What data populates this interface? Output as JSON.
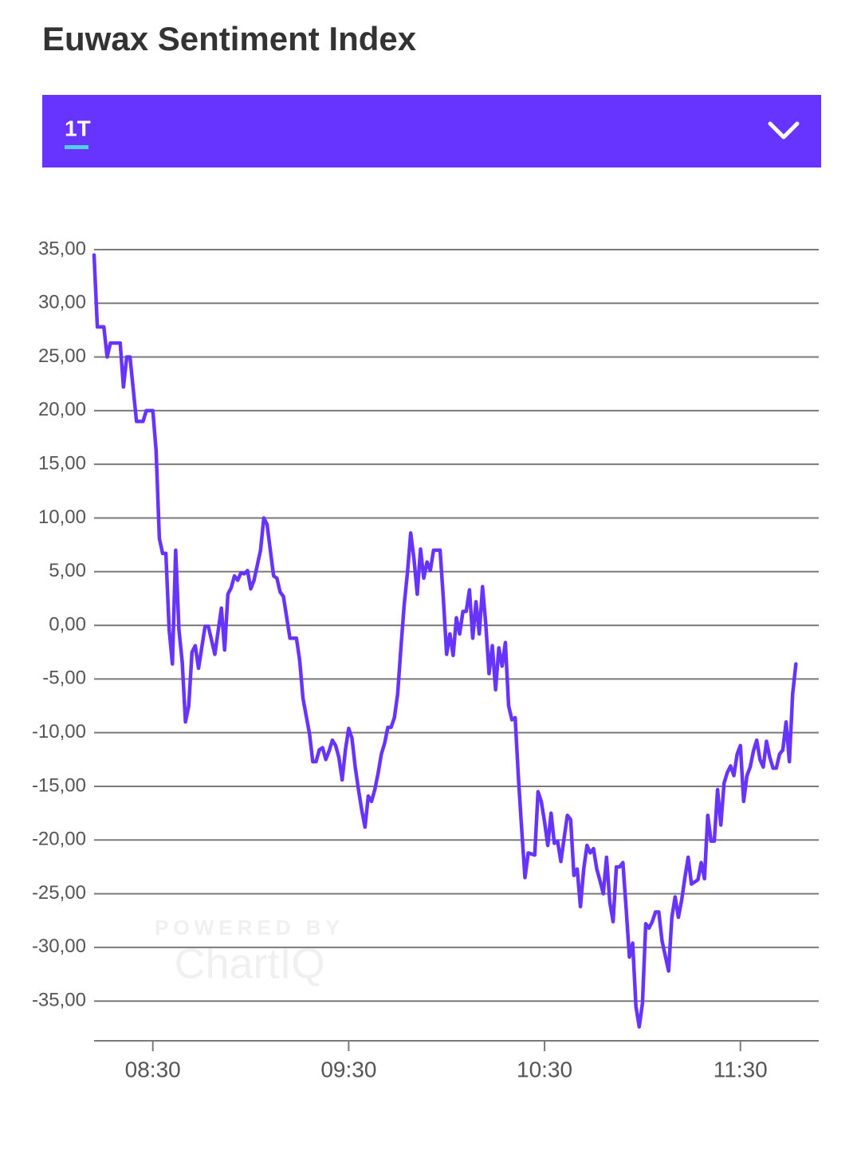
{
  "period": "1T",
  "chart_data": {
    "type": "line",
    "title": "Euwax Sentiment Index",
    "color": "#6633ff",
    "grid": true,
    "watermark": [
      "POWERED BY",
      "ChartIQ"
    ],
    "xlim": [
      "08:12",
      "11:54"
    ],
    "xticks": [
      "08:30",
      "09:30",
      "10:30",
      "11:30"
    ],
    "ylim": [
      -38.7,
      36
    ],
    "yticks": [
      {
        "value": 35,
        "label": "35,00"
      },
      {
        "value": 30,
        "label": "30,00"
      },
      {
        "value": 25,
        "label": "25,00"
      },
      {
        "value": 20,
        "label": "20,00"
      },
      {
        "value": 15,
        "label": "15,00"
      },
      {
        "value": 10,
        "label": "10,00"
      },
      {
        "value": 5,
        "label": "5,00"
      },
      {
        "value": 0,
        "label": "0,00"
      },
      {
        "value": -5,
        "label": "-5,00"
      },
      {
        "value": -10,
        "label": "-10,00"
      },
      {
        "value": -15,
        "label": "-15,00"
      },
      {
        "value": -20,
        "label": "-20,00"
      },
      {
        "value": -25,
        "label": "-25,00"
      },
      {
        "value": -30,
        "label": "-30,00"
      },
      {
        "value": -35,
        "label": "-35,00"
      }
    ],
    "x": [
      "08:12",
      "08:13",
      "08:15",
      "08:16",
      "08:17",
      "08:20",
      "08:21",
      "08:22",
      "08:23",
      "08:25",
      "08:27",
      "08:28",
      "08:30",
      "08:31",
      "08:32",
      "08:33",
      "08:34",
      "08:35",
      "08:36",
      "08:37",
      "08:38",
      "08:39",
      "08:40",
      "08:41",
      "08:42",
      "08:43",
      "08:44",
      "08:46",
      "08:47",
      "08:49",
      "08:51",
      "08:52",
      "08:53",
      "08:54",
      "08:55",
      "08:56",
      "08:57",
      "08:58",
      "08:59",
      "09:00",
      "09:01",
      "09:03",
      "09:04",
      "09:05",
      "09:07",
      "09:08",
      "09:09",
      "09:10",
      "09:12",
      "09:14",
      "09:15",
      "09:16",
      "09:18",
      "09:19",
      "09:20",
      "09:21",
      "09:22",
      "09:23",
      "09:24",
      "09:25",
      "09:26",
      "09:27",
      "09:28",
      "09:29",
      "09:30",
      "09:31",
      "09:32",
      "09:33",
      "09:34",
      "09:35",
      "09:36",
      "09:37",
      "09:38",
      "09:39",
      "09:40",
      "09:41",
      "09:42",
      "09:43",
      "09:44",
      "09:45",
      "09:46",
      "09:47",
      "09:48",
      "09:49",
      "09:50",
      "09:51",
      "09:52",
      "09:53",
      "09:54",
      "09:55",
      "09:56",
      "09:58",
      "09:59",
      "10:00",
      "10:01",
      "10:02",
      "10:03",
      "10:04",
      "10:05",
      "10:06",
      "10:07",
      "10:08",
      "10:09",
      "10:10",
      "10:11",
      "10:12",
      "10:13",
      "10:14",
      "10:15",
      "10:16",
      "10:17",
      "10:18",
      "10:19",
      "10:20",
      "10:21",
      "10:22",
      "10:23",
      "10:24",
      "10:25",
      "10:27",
      "10:28",
      "10:29",
      "10:30",
      "10:31",
      "10:32",
      "10:33",
      "10:34",
      "10:35",
      "10:36",
      "10:37",
      "10:38",
      "10:39",
      "10:40",
      "10:41",
      "10:42",
      "10:43",
      "10:44",
      "10:45",
      "10:46",
      "10:47",
      "10:48",
      "10:49",
      "10:50",
      "10:51",
      "10:52",
      "10:53",
      "10:54",
      "10:55",
      "10:56",
      "10:57",
      "10:58",
      "10:59",
      "11:00",
      "11:01",
      "11:02",
      "11:03",
      "11:04",
      "11:05",
      "11:06",
      "11:08",
      "11:09",
      "11:10",
      "11:11",
      "11:12",
      "11:13",
      "11:14",
      "11:15",
      "11:17",
      "11:18",
      "11:19",
      "11:20",
      "11:21",
      "11:22",
      "11:23",
      "11:24",
      "11:25",
      "11:26",
      "11:27",
      "11:28",
      "11:29",
      "11:30",
      "11:31",
      "11:32",
      "11:33",
      "11:34",
      "11:35",
      "11:36",
      "11:37",
      "11:38",
      "11:39",
      "11:40",
      "11:41",
      "11:42",
      "11:43",
      "11:44",
      "11:45",
      "11:46",
      "11:47"
    ],
    "values": [
      34.5,
      27.8,
      27.8,
      25.0,
      26.3,
      26.3,
      22.2,
      25.0,
      25.0,
      19.0,
      19.0,
      20.0,
      20.0,
      16.3,
      8.1,
      6.7,
      6.7,
      -0.4,
      -3.6,
      7.0,
      -0.4,
      -3.4,
      -9.0,
      -7.5,
      -2.5,
      -1.9,
      -4.0,
      -0.1,
      -0.1,
      -2.7,
      1.6,
      -2.3,
      2.9,
      3.5,
      4.6,
      4.2,
      4.9,
      4.8,
      5.1,
      3.4,
      4.2,
      7.0,
      10.0,
      9.4,
      4.6,
      4.4,
      3.1,
      2.7,
      -1.2,
      -1.2,
      -3.3,
      -6.8,
      -10.1,
      -12.7,
      -12.7,
      -11.6,
      -11.4,
      -12.5,
      -11.7,
      -10.7,
      -11.2,
      -12.3,
      -14.4,
      -11.6,
      -9.6,
      -10.5,
      -13.2,
      -15.3,
      -17.2,
      -18.8,
      -15.9,
      -16.4,
      -15.3,
      -13.8,
      -12.0,
      -11.0,
      -9.5,
      -9.5,
      -8.6,
      -6.4,
      -2.1,
      1.9,
      4.9,
      8.6,
      6.2,
      2.9,
      7.1,
      4.4,
      5.9,
      5.1,
      7.0,
      7.0,
      2.5,
      -2.7,
      -0.8,
      -2.8,
      0.7,
      -0.8,
      1.3,
      1.3,
      3.3,
      -1.2,
      2.2,
      -0.8,
      3.6,
      0.1,
      -4.5,
      -1.9,
      -6.0,
      -2.1,
      -3.8,
      -1.6,
      -7.5,
      -8.8,
      -8.6,
      -14.2,
      -19.0,
      -23.5,
      -21.2,
      -21.4,
      -15.5,
      -16.4,
      -18.3,
      -20.5,
      -17.5,
      -20.3,
      -20.1,
      -22.0,
      -19.8,
      -17.7,
      -18.1,
      -23.3,
      -22.7,
      -26.2,
      -22.7,
      -20.5,
      -21.2,
      -20.8,
      -22.7,
      -23.8,
      -25.0,
      -21.6,
      -25.8,
      -27.6,
      -22.5,
      -22.5,
      -22.1,
      -26.4,
      -30.9,
      -29.6,
      -35.5,
      -37.4,
      -35.2,
      -27.8,
      -28.2,
      -27.6,
      -26.7,
      -26.7,
      -29.4,
      -32.2,
      -27.2,
      -25.3,
      -27.2,
      -25.6,
      -23.5,
      -21.6,
      -24.1,
      -23.7,
      -22.1,
      -23.6,
      -17.7,
      -20.1,
      -20.1,
      -15.3,
      -18.6,
      -14.7,
      -13.7,
      -13.1,
      -14.0,
      -12.0,
      -11.2,
      -16.4,
      -14.0,
      -13.2,
      -11.7,
      -10.7,
      -12.5,
      -13.2,
      -10.8,
      -12.3,
      -13.3,
      -13.3,
      -12.0,
      -11.6,
      -9.0,
      -12.7,
      -6.4,
      -3.6
    ]
  }
}
